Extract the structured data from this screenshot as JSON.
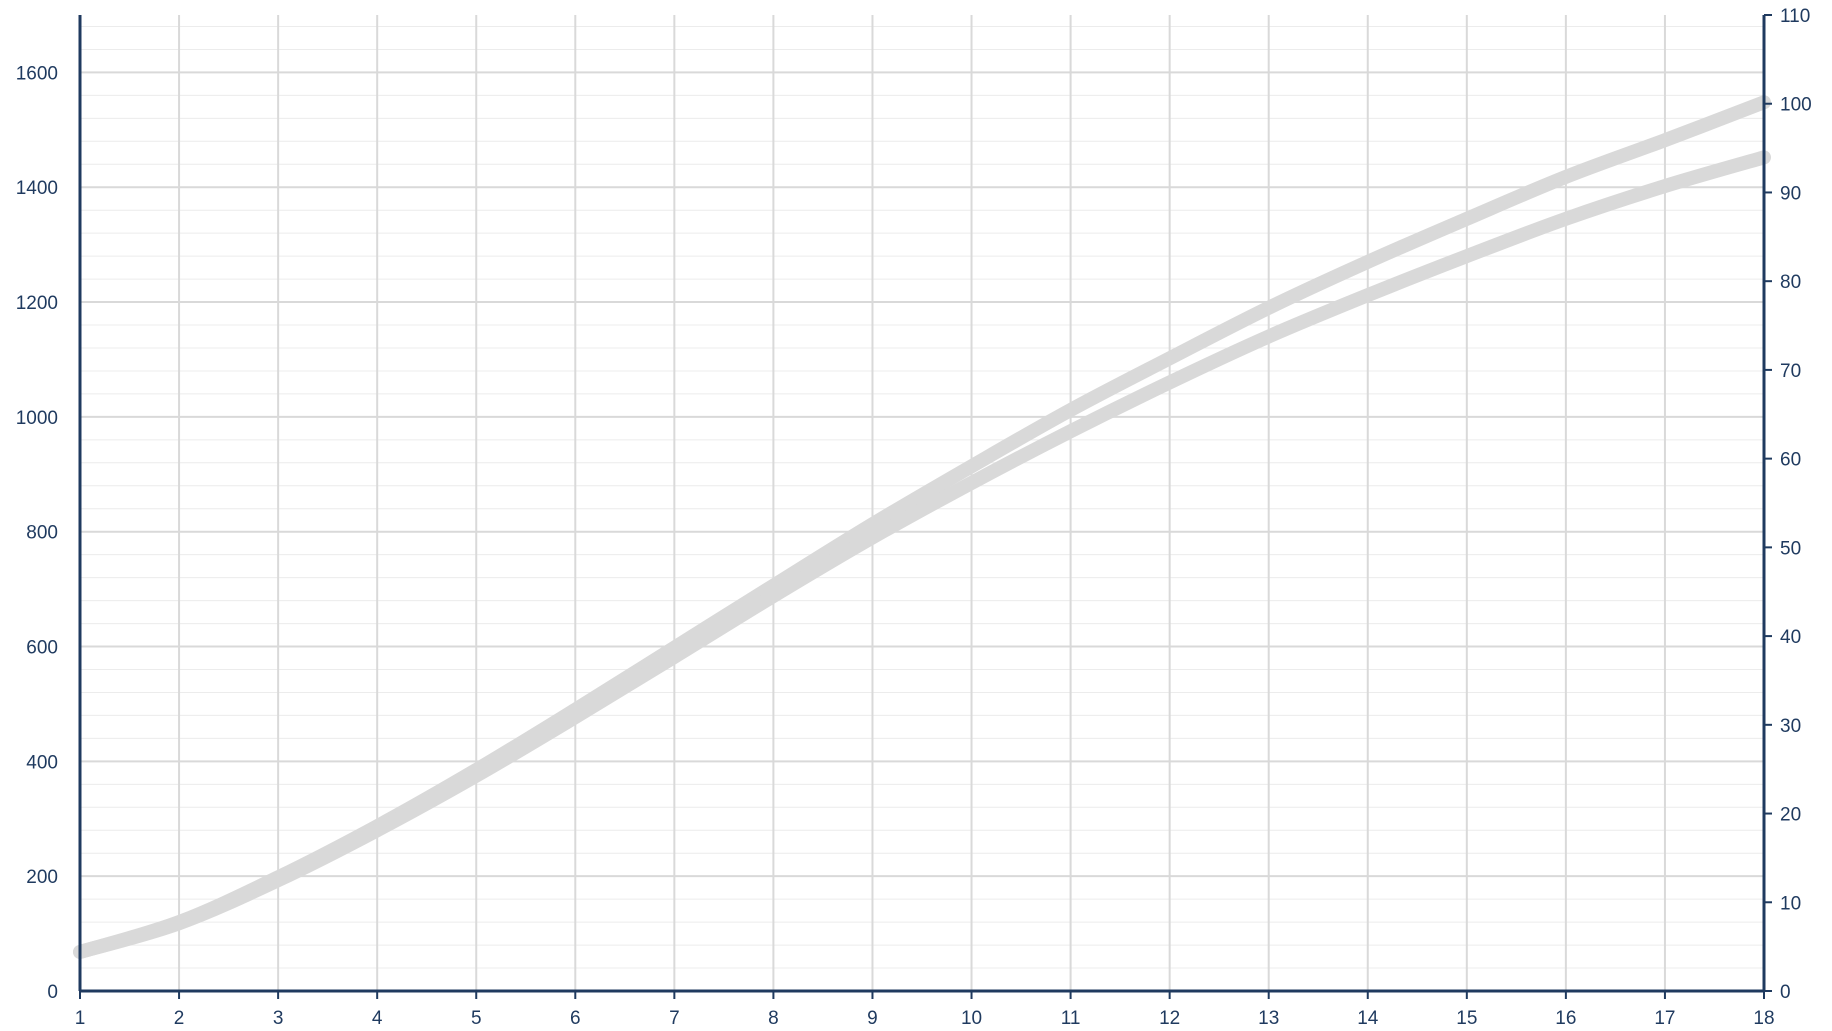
{
  "chart_data": {
    "type": "line",
    "title": "",
    "xlabel": "",
    "ylabel": "",
    "y2label": "",
    "x": [
      1,
      2,
      3,
      4,
      5,
      6,
      7,
      8,
      9,
      10,
      11,
      12,
      13,
      14,
      15,
      16,
      17,
      18
    ],
    "xlim": [
      1,
      18
    ],
    "ylim": [
      0,
      1700
    ],
    "y2lim": [
      0,
      110
    ],
    "yticks": [
      0,
      200,
      400,
      600,
      800,
      1000,
      1200,
      1400,
      1600
    ],
    "y2ticks": [
      0,
      10,
      20,
      30,
      40,
      50,
      60,
      70,
      80,
      90,
      100,
      110
    ],
    "grid": true,
    "legend": "none",
    "series": [
      {
        "axis": "left",
        "color": "#d9d9d9",
        "values": [
          68,
          120,
          198,
          287,
          385,
          490,
          598,
          706,
          813,
          914,
          1012,
          1102,
          1190,
          1270,
          1345,
          1418,
          1482,
          1548
        ]
      },
      {
        "axis": "left",
        "color": "#d9d9d9",
        "values": [
          68,
          118,
          193,
          280,
          375,
          477,
          582,
          688,
          790,
          885,
          975,
          1060,
          1140,
          1212,
          1280,
          1345,
          1402,
          1452
        ]
      }
    ],
    "colors": {
      "axis": "#1f3a5f",
      "grid_major": "#d9d9d9",
      "grid_minor": "#ececec",
      "tick_text": "#1f3a5f"
    }
  }
}
